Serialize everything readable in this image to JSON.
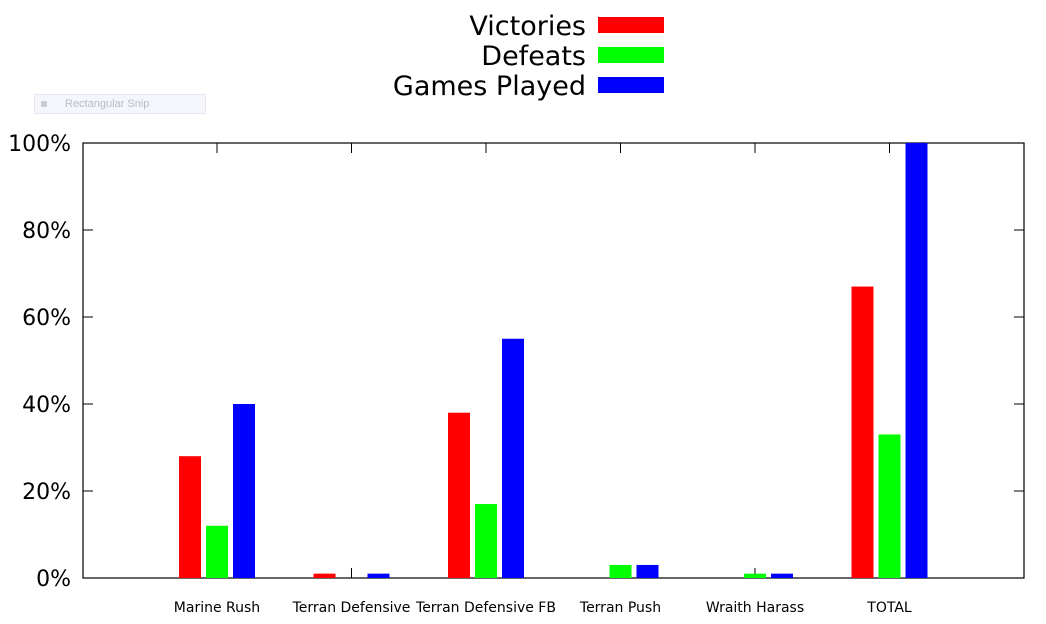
{
  "overlay": {
    "snip_label": "Rectangular Snip"
  },
  "chart_data": {
    "type": "bar",
    "categories": [
      "Marine Rush",
      "Terran Defensive",
      "Terran Defensive FB",
      "Terran Push",
      "Wraith Harass",
      "TOTAL"
    ],
    "series": [
      {
        "name": "Victories",
        "color": "#ff0000",
        "values": [
          28,
          1,
          38,
          0,
          0,
          67
        ]
      },
      {
        "name": "Defeats",
        "color": "#00ff00",
        "values": [
          12,
          0,
          17,
          3,
          1,
          33
        ]
      },
      {
        "name": "Games Played",
        "color": "#0000ff",
        "values": [
          40,
          1,
          55,
          3,
          1,
          100
        ]
      }
    ],
    "ylim": [
      0,
      100
    ],
    "yticks": [
      {
        "value": 0,
        "label": "0%"
      },
      {
        "value": 20,
        "label": "20%"
      },
      {
        "value": 40,
        "label": "40%"
      },
      {
        "value": 60,
        "label": "60%"
      },
      {
        "value": 80,
        "label": "80%"
      },
      {
        "value": 100,
        "label": "100%"
      }
    ],
    "title": "",
    "xlabel": "",
    "ylabel": "",
    "legend_position": "top-center",
    "grid": false
  }
}
